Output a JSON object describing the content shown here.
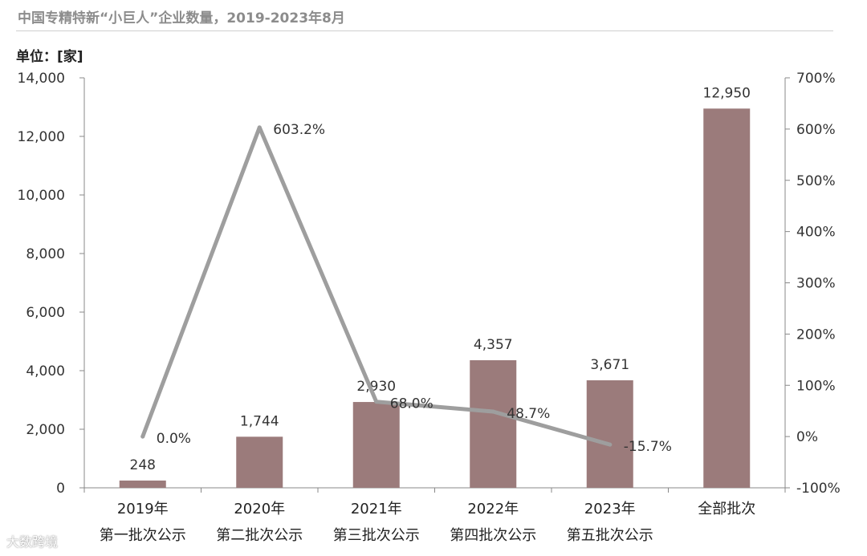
{
  "title": "中国专精特新“小巨人”企业数量，2019-2023年8月",
  "unit_label": "单位：[家]",
  "watermark": "大数跨境",
  "chart_data": {
    "type": "bar",
    "categories": [
      {
        "year": "2019年",
        "batch": "第一批次公示"
      },
      {
        "year": "2020年",
        "batch": "第二批次公示"
      },
      {
        "year": "2021年",
        "batch": "第三批次公示"
      },
      {
        "year": "2022年",
        "batch": "第四批次公示"
      },
      {
        "year": "2023年",
        "batch": "第五批次公示"
      },
      {
        "year": "",
        "batch": "全部批次"
      }
    ],
    "bar_series": {
      "values": [
        248,
        1744,
        2930,
        4357,
        3671,
        12950
      ],
      "labels": [
        "248",
        "1,744",
        "2,930",
        "4,357",
        "3,671",
        "12,950"
      ],
      "color": "#9b7b7b"
    },
    "line_series": {
      "values": [
        0.0,
        603.2,
        68.0,
        48.7,
        -15.7
      ],
      "labels": [
        "0.0%",
        "603.2%",
        "68.0%",
        "48.7%",
        "-15.7%"
      ],
      "color": "#9e9e9e"
    },
    "y_left": {
      "ylim": [
        0,
        14000
      ],
      "ticks": [
        0,
        2000,
        4000,
        6000,
        8000,
        10000,
        12000,
        14000
      ],
      "tick_labels": [
        "0",
        "2,000",
        "4,000",
        "6,000",
        "8,000",
        "10,000",
        "12,000",
        "14,000"
      ]
    },
    "y_right": {
      "ylim": [
        -100,
        700
      ],
      "ticks": [
        -100,
        0,
        100,
        200,
        300,
        400,
        500,
        600,
        700
      ],
      "tick_labels": [
        "-100%",
        "0%",
        "100%",
        "200%",
        "300%",
        "400%",
        "500%",
        "600%",
        "700%"
      ]
    },
    "grid": false
  }
}
